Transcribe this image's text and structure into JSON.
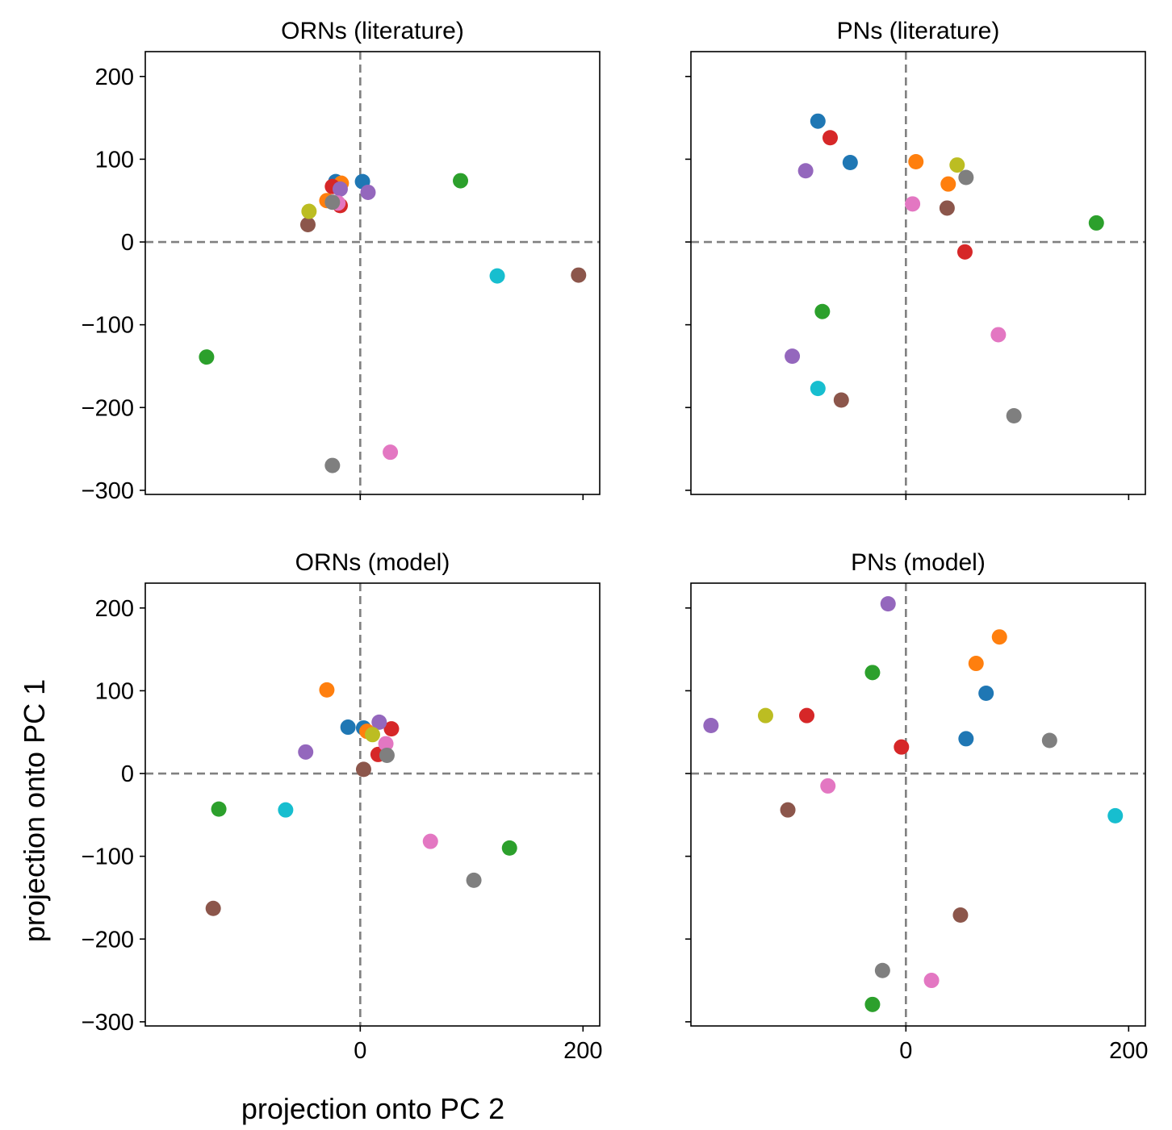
{
  "figure": {
    "xlabel": "projection onto PC 2",
    "ylabel": "projection onto PC 1"
  },
  "chart_data": [
    {
      "type": "scatter",
      "title": "ORNs (literature)",
      "xlim": [
        -193,
        215
      ],
      "ylim": [
        -305,
        230
      ],
      "xticks": [
        0,
        200
      ],
      "xtick_labels_visible": false,
      "yticks": [
        -300,
        -200,
        -100,
        0,
        100,
        200
      ],
      "ytick_labels_visible": true,
      "reference_lines": {
        "x": 0,
        "y": 0,
        "style": "dashed",
        "color": "#808080"
      },
      "points": [
        {
          "x": -22,
          "y": 73,
          "color": "#1f77b4"
        },
        {
          "x": 2,
          "y": 73,
          "color": "#1f77b4"
        },
        {
          "x": -17,
          "y": 71,
          "color": "#ff7f0e"
        },
        {
          "x": -30,
          "y": 50,
          "color": "#ff7f0e"
        },
        {
          "x": -138,
          "y": -139,
          "color": "#2ca02c"
        },
        {
          "x": 90,
          "y": 74,
          "color": "#2ca02c"
        },
        {
          "x": -18,
          "y": 44,
          "color": "#d62728"
        },
        {
          "x": -25,
          "y": 67,
          "color": "#d62728"
        },
        {
          "x": -18,
          "y": 64,
          "color": "#9467bd"
        },
        {
          "x": 7,
          "y": 60,
          "color": "#9467bd"
        },
        {
          "x": -47,
          "y": 21,
          "color": "#8c564b"
        },
        {
          "x": 196,
          "y": -40,
          "color": "#8c564b"
        },
        {
          "x": -20,
          "y": 47,
          "color": "#e377c2"
        },
        {
          "x": 27,
          "y": -254,
          "color": "#e377c2"
        },
        {
          "x": -25,
          "y": 48,
          "color": "#7f7f7f"
        },
        {
          "x": -25,
          "y": -270,
          "color": "#7f7f7f"
        },
        {
          "x": -46,
          "y": 37,
          "color": "#bcbd22"
        },
        {
          "x": 123,
          "y": -41,
          "color": "#17becf"
        }
      ]
    },
    {
      "type": "scatter",
      "title": "PNs (literature)",
      "xlim": [
        -193,
        215
      ],
      "ylim": [
        -305,
        230
      ],
      "xticks": [
        0,
        200
      ],
      "xtick_labels_visible": false,
      "yticks": [
        -300,
        -200,
        -100,
        0,
        100,
        200
      ],
      "ytick_labels_visible": false,
      "reference_lines": {
        "x": 0,
        "y": 0,
        "style": "dashed",
        "color": "#808080"
      },
      "points": [
        {
          "x": -79,
          "y": 146,
          "color": "#1f77b4"
        },
        {
          "x": -50,
          "y": 96,
          "color": "#1f77b4"
        },
        {
          "x": 9,
          "y": 97,
          "color": "#ff7f0e"
        },
        {
          "x": 38,
          "y": 70,
          "color": "#ff7f0e"
        },
        {
          "x": -75,
          "y": -84,
          "color": "#2ca02c"
        },
        {
          "x": 171,
          "y": 23,
          "color": "#2ca02c"
        },
        {
          "x": -68,
          "y": 126,
          "color": "#d62728"
        },
        {
          "x": 53,
          "y": -12,
          "color": "#d62728"
        },
        {
          "x": -90,
          "y": 86,
          "color": "#9467bd"
        },
        {
          "x": -102,
          "y": -138,
          "color": "#9467bd"
        },
        {
          "x": 37,
          "y": 41,
          "color": "#8c564b"
        },
        {
          "x": -58,
          "y": -191,
          "color": "#8c564b"
        },
        {
          "x": 6,
          "y": 46,
          "color": "#e377c2"
        },
        {
          "x": 83,
          "y": -112,
          "color": "#e377c2"
        },
        {
          "x": 54,
          "y": 78,
          "color": "#7f7f7f"
        },
        {
          "x": 97,
          "y": -210,
          "color": "#7f7f7f"
        },
        {
          "x": 46,
          "y": 93,
          "color": "#bcbd22"
        },
        {
          "x": -79,
          "y": -177,
          "color": "#17becf"
        }
      ]
    },
    {
      "type": "scatter",
      "title": "ORNs (model)",
      "xlim": [
        -193,
        215
      ],
      "ylim": [
        -305,
        230
      ],
      "xticks": [
        0,
        200
      ],
      "xtick_labels_visible": true,
      "yticks": [
        -300,
        -200,
        -100,
        0,
        100,
        200
      ],
      "ytick_labels_visible": true,
      "reference_lines": {
        "x": 0,
        "y": 0,
        "style": "dashed",
        "color": "#808080"
      },
      "points": [
        {
          "x": -11,
          "y": 56,
          "color": "#1f77b4"
        },
        {
          "x": 3,
          "y": 55,
          "color": "#1f77b4"
        },
        {
          "x": -30,
          "y": 101,
          "color": "#ff7f0e"
        },
        {
          "x": 6,
          "y": 51,
          "color": "#ff7f0e"
        },
        {
          "x": -127,
          "y": -43,
          "color": "#2ca02c"
        },
        {
          "x": 134,
          "y": -90,
          "color": "#2ca02c"
        },
        {
          "x": 28,
          "y": 54,
          "color": "#d62728"
        },
        {
          "x": 16,
          "y": 23,
          "color": "#d62728"
        },
        {
          "x": -49,
          "y": 26,
          "color": "#9467bd"
        },
        {
          "x": 17,
          "y": 62,
          "color": "#9467bd"
        },
        {
          "x": 3,
          "y": 5,
          "color": "#8c564b"
        },
        {
          "x": -132,
          "y": -163,
          "color": "#8c564b"
        },
        {
          "x": 23,
          "y": 36,
          "color": "#e377c2"
        },
        {
          "x": 63,
          "y": -82,
          "color": "#e377c2"
        },
        {
          "x": 24,
          "y": 22,
          "color": "#7f7f7f"
        },
        {
          "x": 102,
          "y": -129,
          "color": "#7f7f7f"
        },
        {
          "x": 11,
          "y": 47,
          "color": "#bcbd22"
        },
        {
          "x": -67,
          "y": -44,
          "color": "#17becf"
        }
      ]
    },
    {
      "type": "scatter",
      "title": "PNs (model)",
      "xlim": [
        -193,
        215
      ],
      "ylim": [
        -305,
        230
      ],
      "xticks": [
        0,
        200
      ],
      "xtick_labels_visible": true,
      "yticks": [
        -300,
        -200,
        -100,
        0,
        100,
        200
      ],
      "ytick_labels_visible": false,
      "reference_lines": {
        "x": 0,
        "y": 0,
        "style": "dashed",
        "color": "#808080"
      },
      "points": [
        {
          "x": 72,
          "y": 97,
          "color": "#1f77b4"
        },
        {
          "x": 54,
          "y": 42,
          "color": "#1f77b4"
        },
        {
          "x": 84,
          "y": 165,
          "color": "#ff7f0e"
        },
        {
          "x": 63,
          "y": 133,
          "color": "#ff7f0e"
        },
        {
          "x": -30,
          "y": 122,
          "color": "#2ca02c"
        },
        {
          "x": -30,
          "y": -279,
          "color": "#2ca02c"
        },
        {
          "x": -89,
          "y": 70,
          "color": "#d62728"
        },
        {
          "x": -4,
          "y": 32,
          "color": "#d62728"
        },
        {
          "x": -16,
          "y": 205,
          "color": "#9467bd"
        },
        {
          "x": -175,
          "y": 58,
          "color": "#9467bd"
        },
        {
          "x": -106,
          "y": -44,
          "color": "#8c564b"
        },
        {
          "x": 49,
          "y": -171,
          "color": "#8c564b"
        },
        {
          "x": -70,
          "y": -15,
          "color": "#e377c2"
        },
        {
          "x": 23,
          "y": -250,
          "color": "#e377c2"
        },
        {
          "x": 129,
          "y": 40,
          "color": "#7f7f7f"
        },
        {
          "x": -21,
          "y": -238,
          "color": "#7f7f7f"
        },
        {
          "x": -126,
          "y": 70,
          "color": "#bcbd22"
        },
        {
          "x": 188,
          "y": -51,
          "color": "#17becf"
        }
      ]
    }
  ]
}
